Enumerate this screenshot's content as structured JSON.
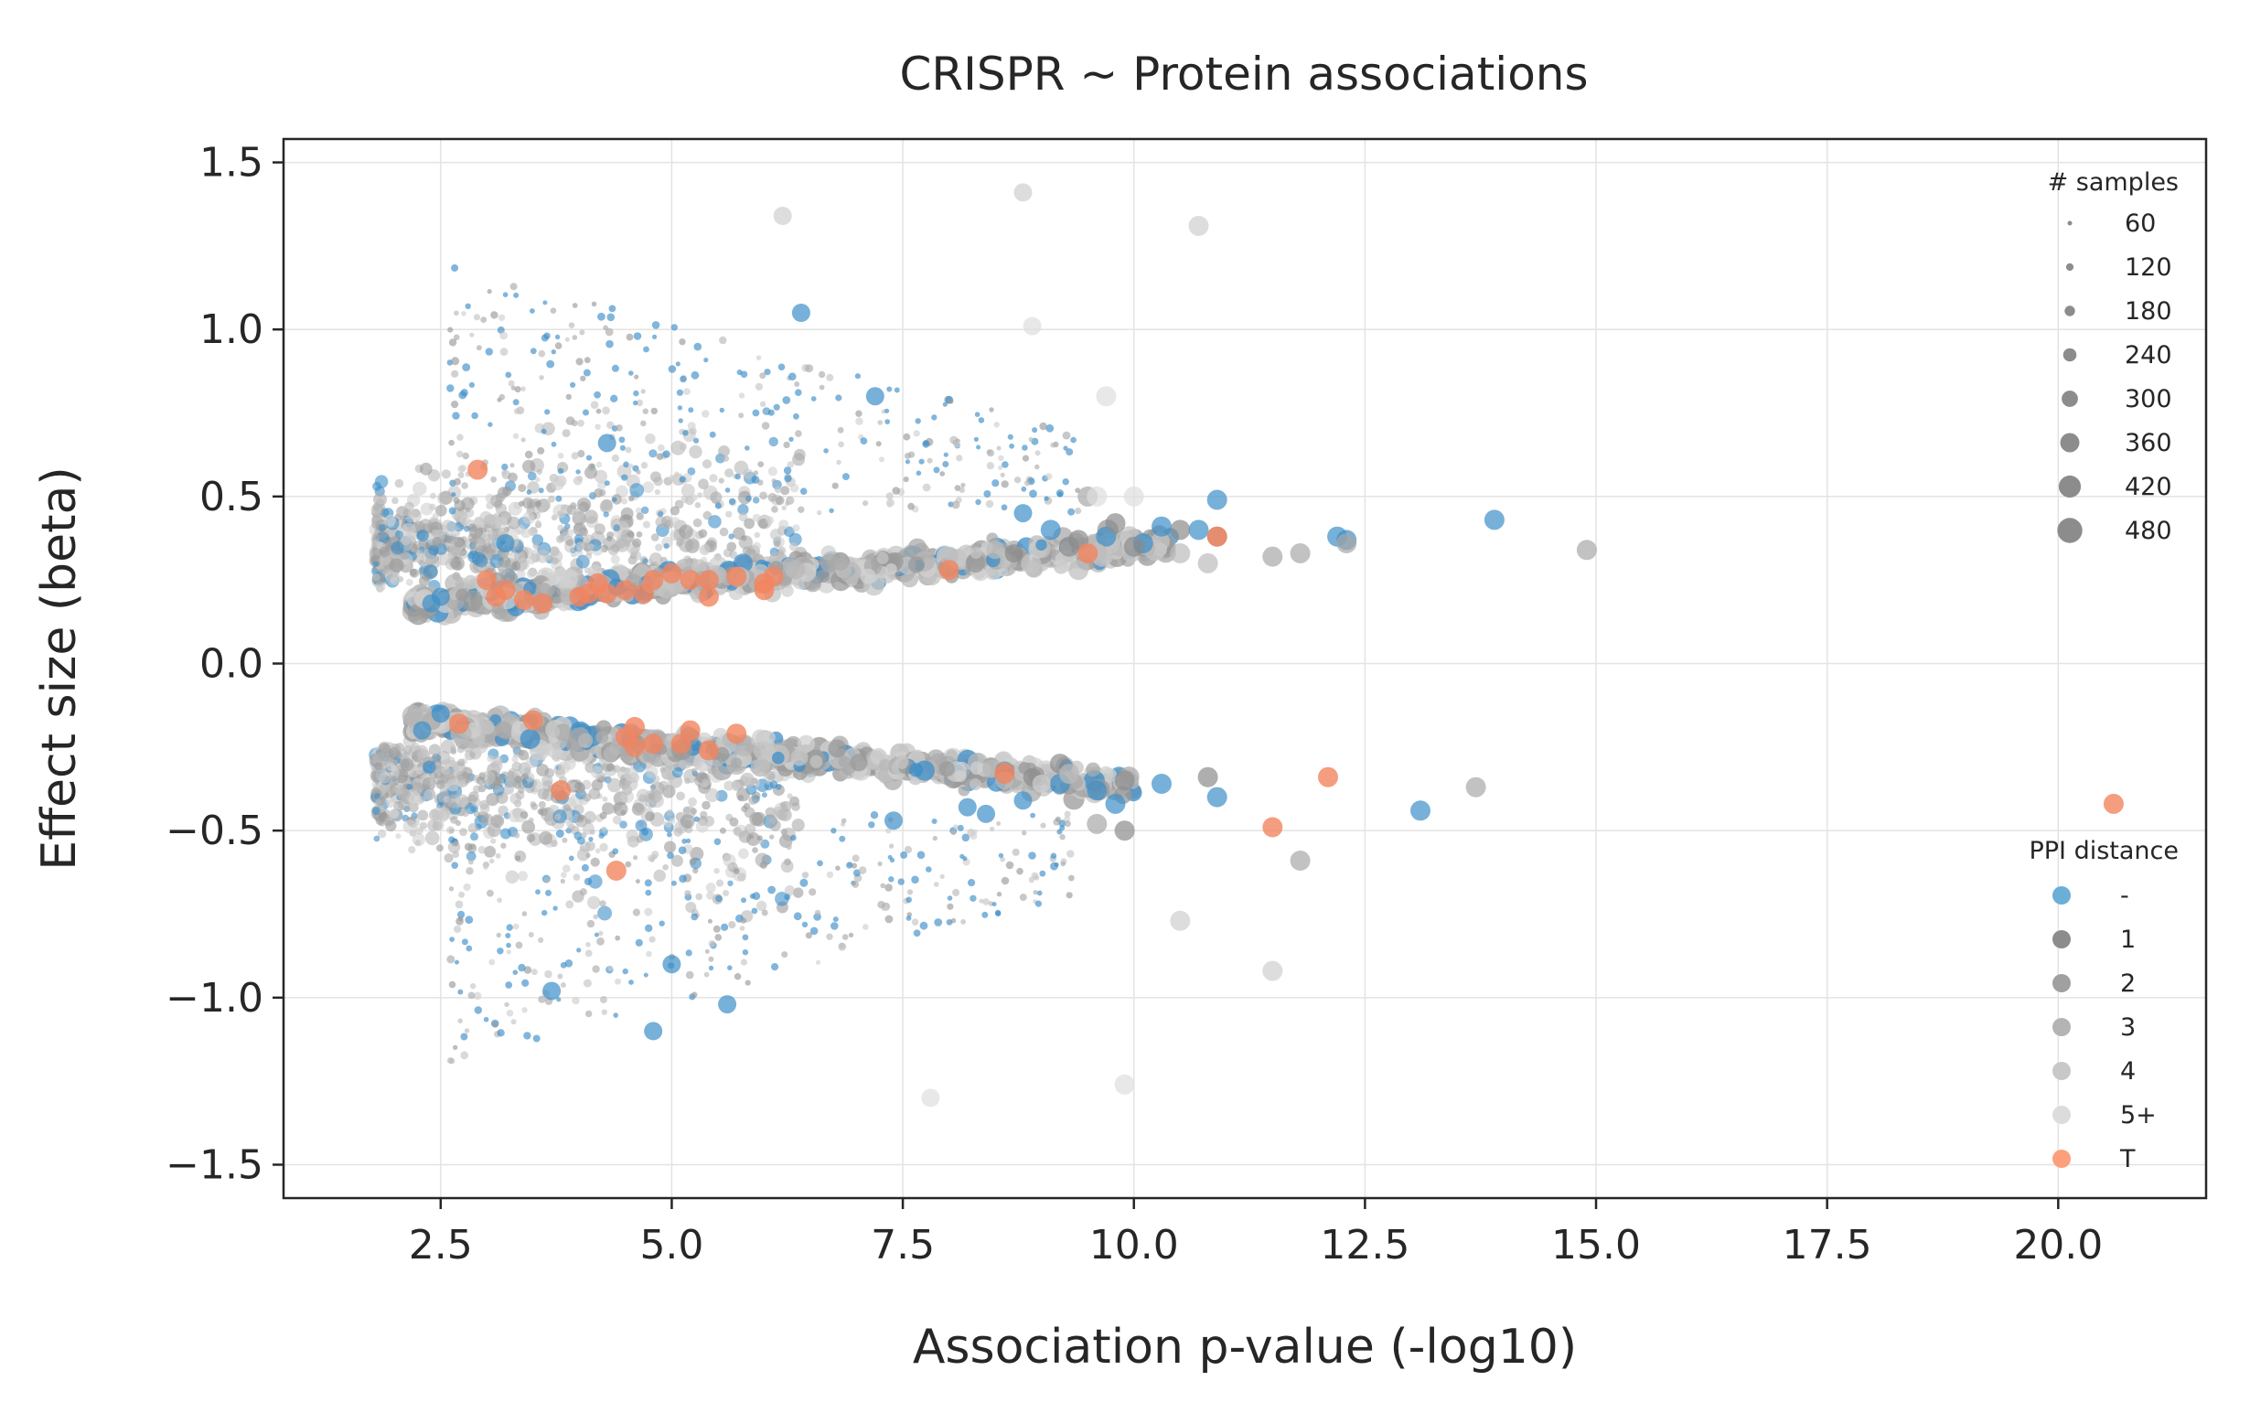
{
  "chart_data": {
    "type": "scatter",
    "title": "CRISPR ~ Protein associations",
    "xlabel": "Association p-value (-log10)",
    "ylabel": "Effect size (beta)",
    "xlim": [
      0.8,
      21.6
    ],
    "ylim": [
      -1.6,
      1.57
    ],
    "x_ticks": [
      "2.5",
      "5.0",
      "7.5",
      "10.0",
      "12.5",
      "15.0",
      "17.5",
      "20.0"
    ],
    "y_ticks": [
      "1.5",
      "1.0",
      "0.5",
      "0.0",
      "−0.5",
      "−1.0",
      "−1.5"
    ],
    "grid": true,
    "size_legend": {
      "title": "# samples",
      "placement": "upper-right",
      "entries": [
        "60",
        "120",
        "180",
        "240",
        "300",
        "360",
        "420",
        "480"
      ]
    },
    "color_legend": {
      "title": "PPI distance",
      "placement": "lower-right",
      "entries": [
        {
          "label": "-",
          "color": "#6baed6"
        },
        {
          "label": "1",
          "color": "#8c8c8c"
        },
        {
          "label": "2",
          "color": "#a0a0a0"
        },
        {
          "label": "3",
          "color": "#b4b4b4"
        },
        {
          "label": "4",
          "color": "#c8c8c8"
        },
        {
          "label": "5+",
          "color": "#dcdcdc"
        },
        {
          "label": "T",
          "color": "#fc9f7c"
        }
      ]
    },
    "series": [
      {
        "name": "-",
        "color": "#3d8ec7",
        "points": [
          [
            13.9,
            0.43
          ],
          [
            12.3,
            0.37
          ],
          [
            12.2,
            0.38
          ],
          [
            10.9,
            0.49
          ],
          [
            10.3,
            0.41
          ],
          [
            9.7,
            0.38
          ],
          [
            8.8,
            0.45
          ],
          [
            9.1,
            0.4
          ],
          [
            10.7,
            0.4
          ],
          [
            10.1,
            0.36
          ],
          [
            13.1,
            -0.44
          ],
          [
            10.9,
            -0.4
          ],
          [
            10.3,
            -0.36
          ],
          [
            9.6,
            -0.38
          ],
          [
            9.8,
            -0.42
          ],
          [
            9.2,
            -0.36
          ],
          [
            8.8,
            -0.41
          ],
          [
            8.4,
            -0.45
          ],
          [
            8.2,
            -0.43
          ],
          [
            2.5,
            -0.15
          ],
          [
            2.4,
            0.18
          ],
          [
            7.4,
            -0.47
          ],
          [
            2.3,
            -0.2
          ],
          [
            2.5,
            0.2
          ],
          [
            3.2,
            0.36
          ],
          [
            4.3,
            0.66
          ],
          [
            5.0,
            -0.9
          ],
          [
            5.6,
            -1.02
          ],
          [
            6.4,
            1.05
          ],
          [
            7.2,
            0.8
          ],
          [
            3.7,
            -0.98
          ],
          [
            4.8,
            -1.1
          ]
        ]
      },
      {
        "name": "1",
        "color": "#8c8c8c",
        "points": [
          [
            10.9,
            0.38
          ],
          [
            9.3,
            0.35
          ],
          [
            8.7,
            0.33
          ],
          [
            10.0,
            0.35
          ],
          [
            9.9,
            -0.5
          ],
          [
            8.9,
            -0.34
          ],
          [
            10.8,
            -0.34
          ],
          [
            9.9,
            -0.35
          ],
          [
            9.2,
            -0.3
          ],
          [
            8.6,
            -0.32
          ],
          [
            9.8,
            0.42
          ],
          [
            9.4,
            0.37
          ],
          [
            10.5,
            0.4
          ]
        ]
      },
      {
        "name": "2",
        "color": "#a8a8a8",
        "points": [
          [
            14.9,
            0.34
          ],
          [
            11.8,
            0.33
          ],
          [
            11.5,
            0.32
          ],
          [
            13.7,
            -0.37
          ],
          [
            12.3,
            0.36
          ],
          [
            9.5,
            0.5
          ],
          [
            11.8,
            -0.59
          ],
          [
            9.6,
            -0.48
          ]
        ]
      },
      {
        "name": "3",
        "color": "#bcbcbc",
        "points": [
          [
            10.5,
            0.33
          ],
          [
            9.6,
            0.33
          ],
          [
            10.8,
            0.3
          ],
          [
            9.4,
            0.28
          ],
          [
            8.5,
            0.34
          ],
          [
            8.0,
            0.32
          ],
          [
            9.3,
            -0.33
          ],
          [
            8.6,
            -0.35
          ]
        ]
      },
      {
        "name": "4",
        "color": "#cfcfcf",
        "points": [
          [
            8.8,
            1.41
          ],
          [
            10.7,
            1.31
          ],
          [
            6.2,
            1.34
          ],
          [
            9.0,
            -0.36
          ],
          [
            11.5,
            -0.92
          ],
          [
            10.5,
            -0.77
          ]
        ]
      },
      {
        "name": "5+",
        "color": "#dedede",
        "points": [
          [
            9.9,
            -1.26
          ],
          [
            7.8,
            -1.3
          ],
          [
            8.9,
            1.01
          ],
          [
            9.7,
            0.8
          ],
          [
            10.0,
            0.5
          ],
          [
            9.6,
            0.5
          ]
        ]
      },
      {
        "name": "T",
        "color": "#f2855f",
        "points": [
          [
            20.6,
            -0.42
          ],
          [
            12.1,
            -0.34
          ],
          [
            11.5,
            -0.49
          ],
          [
            10.9,
            0.38
          ],
          [
            9.5,
            0.33
          ],
          [
            8.0,
            0.28
          ],
          [
            8.6,
            -0.33
          ],
          [
            6.1,
            0.26
          ],
          [
            6.0,
            0.24
          ],
          [
            5.7,
            0.26
          ],
          [
            5.4,
            0.25
          ],
          [
            5.2,
            0.25
          ],
          [
            5.0,
            0.27
          ],
          [
            4.8,
            0.25
          ],
          [
            4.7,
            0.21
          ],
          [
            4.5,
            0.22
          ],
          [
            4.3,
            0.21
          ],
          [
            4.2,
            0.24
          ],
          [
            4.1,
            0.21
          ],
          [
            4.0,
            0.2
          ],
          [
            3.6,
            0.18
          ],
          [
            3.4,
            0.19
          ],
          [
            3.2,
            0.22
          ],
          [
            3.1,
            0.2
          ],
          [
            3.0,
            0.25
          ],
          [
            5.4,
            0.2
          ],
          [
            6.0,
            0.22
          ],
          [
            2.7,
            -0.18
          ],
          [
            3.5,
            -0.17
          ],
          [
            4.5,
            -0.22
          ],
          [
            4.6,
            -0.19
          ],
          [
            4.6,
            -0.25
          ],
          [
            4.8,
            -0.24
          ],
          [
            5.1,
            -0.24
          ],
          [
            5.2,
            -0.2
          ],
          [
            5.4,
            -0.26
          ],
          [
            5.7,
            -0.21
          ],
          [
            2.9,
            0.58
          ],
          [
            3.8,
            -0.38
          ],
          [
            4.4,
            -0.62
          ]
        ]
      }
    ]
  }
}
